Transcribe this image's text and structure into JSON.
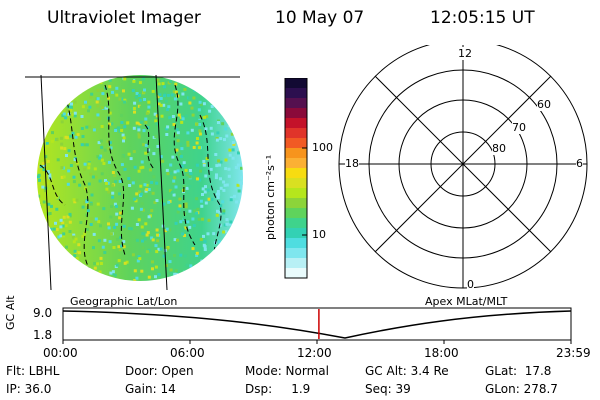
{
  "header": {
    "instrument": "Ultraviolet Imager",
    "date": "10 May 07",
    "time": "12:05:15 UT"
  },
  "colorbar": {
    "unit_label": "photon cm⁻²s⁻¹",
    "tick_100": "100",
    "tick_10": "10",
    "colors": [
      "#120a33",
      "#2c0f4f",
      "#55104f",
      "#8a0a3a",
      "#c4122a",
      "#e0342a",
      "#f15a24",
      "#f7941d",
      "#fbb034",
      "#f7dc11",
      "#d9e021",
      "#b5e61d",
      "#8cd43a",
      "#5fd35c",
      "#3fd38c",
      "#33d1b4",
      "#4fdde0",
      "#7fe6ee",
      "#b8f0f5",
      "#e9fbfc"
    ]
  },
  "geo_panel": {
    "label": "Geographic Lat/Lon"
  },
  "polar_panel": {
    "label": "Apex MLat/MLT",
    "mlt_labels": {
      "top": "12",
      "left": "18",
      "right": "6",
      "bottom": "0"
    },
    "lat_labels": [
      "60",
      "70",
      "80"
    ]
  },
  "timeline": {
    "y_label": "GC Alt",
    "y_ticks": [
      "9.0",
      "1.8"
    ],
    "x_ticks": [
      "00:00",
      "06:00",
      "12:00",
      "18:00",
      "23:59"
    ],
    "marker_time": "12:05",
    "marker_color": "#cc0000"
  },
  "info": {
    "flt": "Flt: LBHL",
    "door": "Door: Open",
    "mode": "Mode: Normal",
    "gc_alt": "GC Alt: 3.4 Re",
    "glat": "GLat:  17.8",
    "ip": "IP: 36.0",
    "gain": "Gain: 14",
    "dsp": "Dsp:     1.9",
    "seq": "Seq: 39",
    "glon": "GLon: 278.7"
  }
}
